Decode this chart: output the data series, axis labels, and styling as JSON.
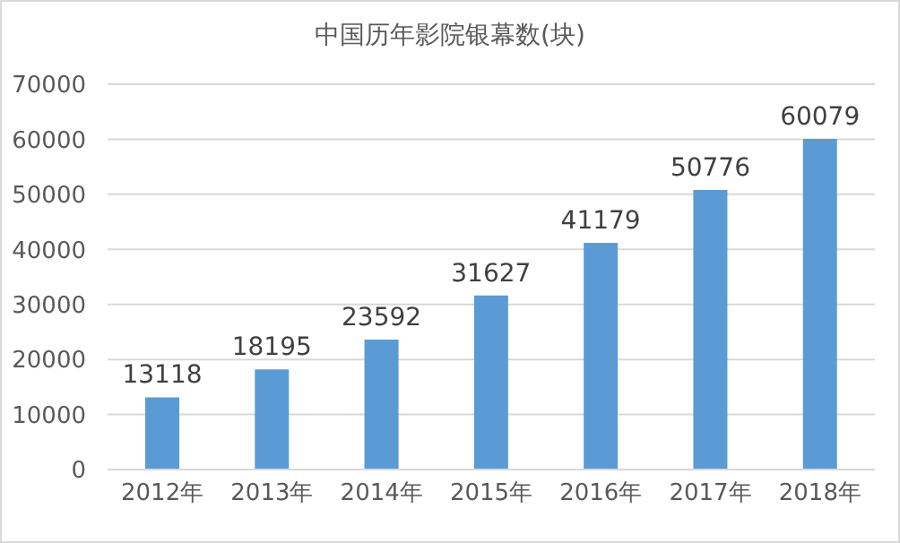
{
  "chart_data": {
    "type": "bar",
    "title": "中国历年影院银幕数(块)",
    "categories": [
      "2012年",
      "2013年",
      "2014年",
      "2015年",
      "2016年",
      "2017年",
      "2018年"
    ],
    "values": [
      13118,
      18195,
      23592,
      31627,
      41179,
      50776,
      60079
    ],
    "color": "#5b9bd5",
    "ylim": [
      0,
      70000
    ],
    "yticks": [
      0,
      10000,
      20000,
      30000,
      40000,
      50000,
      60000,
      70000
    ],
    "grid": "y",
    "data_labels": true
  }
}
